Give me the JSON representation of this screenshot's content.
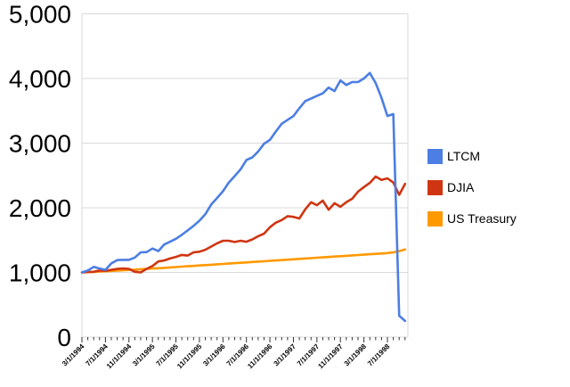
{
  "chart_data": {
    "type": "line",
    "title": "",
    "grid": "horizontal",
    "legend_position": "right",
    "x_axis": {
      "unit": "month",
      "total_points": 56,
      "tick_label_every_n_points": 4,
      "tick_labels": [
        "3/1/1994",
        "7/1/1994",
        "11/1/1994",
        "3/1/1995",
        "7/1/1995",
        "11/1/1995",
        "3/1/1996",
        "7/1/1996",
        "11/1/1996",
        "3/1/1997",
        "7/1/1997",
        "11/1/1997",
        "3/1/1998",
        "7/1/1998"
      ]
    },
    "y_axis": {
      "min": 0,
      "max": 5000,
      "tick_interval": 1000,
      "tick_labels": [
        "0",
        "1,000",
        "2,000",
        "3,000",
        "4,000",
        "5,000"
      ]
    },
    "series": [
      {
        "name": "LTCM",
        "color": "#4c7ee3",
        "values": [
          1000,
          1030,
          1085,
          1060,
          1040,
          1140,
          1190,
          1195,
          1195,
          1230,
          1310,
          1315,
          1370,
          1330,
          1430,
          1475,
          1520,
          1580,
          1650,
          1720,
          1800,
          1900,
          2050,
          2150,
          2255,
          2390,
          2490,
          2595,
          2740,
          2780,
          2870,
          2990,
          3050,
          3180,
          3300,
          3360,
          3420,
          3540,
          3650,
          3690,
          3730,
          3770,
          3860,
          3805,
          3970,
          3900,
          3945,
          3945,
          4000,
          4085,
          3930,
          3700,
          3420,
          3450,
          330,
          250
        ]
      },
      {
        "name": "DJIA",
        "color": "#cf3512",
        "values": [
          1000,
          1005,
          1010,
          1030,
          1025,
          1040,
          1055,
          1060,
          1055,
          1010,
          1000,
          1055,
          1100,
          1170,
          1185,
          1215,
          1240,
          1270,
          1260,
          1310,
          1320,
          1350,
          1400,
          1450,
          1490,
          1490,
          1470,
          1490,
          1475,
          1510,
          1560,
          1600,
          1700,
          1770,
          1810,
          1870,
          1860,
          1835,
          1975,
          2085,
          2040,
          2110,
          1970,
          2070,
          2015,
          2085,
          2140,
          2250,
          2320,
          2385,
          2483,
          2430,
          2455,
          2390,
          2200,
          2370
        ]
      },
      {
        "name": "US Treasury",
        "color": "#ff9900",
        "values": [
          1000,
          1004,
          1008,
          1013,
          1018,
          1023,
          1028,
          1033,
          1038,
          1043,
          1049,
          1054,
          1060,
          1065,
          1071,
          1077,
          1083,
          1089,
          1095,
          1101,
          1107,
          1113,
          1119,
          1125,
          1131,
          1137,
          1143,
          1149,
          1155,
          1161,
          1167,
          1173,
          1179,
          1185,
          1191,
          1197,
          1203,
          1209,
          1215,
          1221,
          1227,
          1233,
          1239,
          1245,
          1251,
          1257,
          1263,
          1269,
          1275,
          1281,
          1287,
          1293,
          1299,
          1310,
          1330,
          1355
        ]
      }
    ]
  },
  "colors": {
    "gridline": "#d9d9d9",
    "axis_tick": "#333333",
    "label_text": "#000000",
    "background": "#ffffff"
  }
}
